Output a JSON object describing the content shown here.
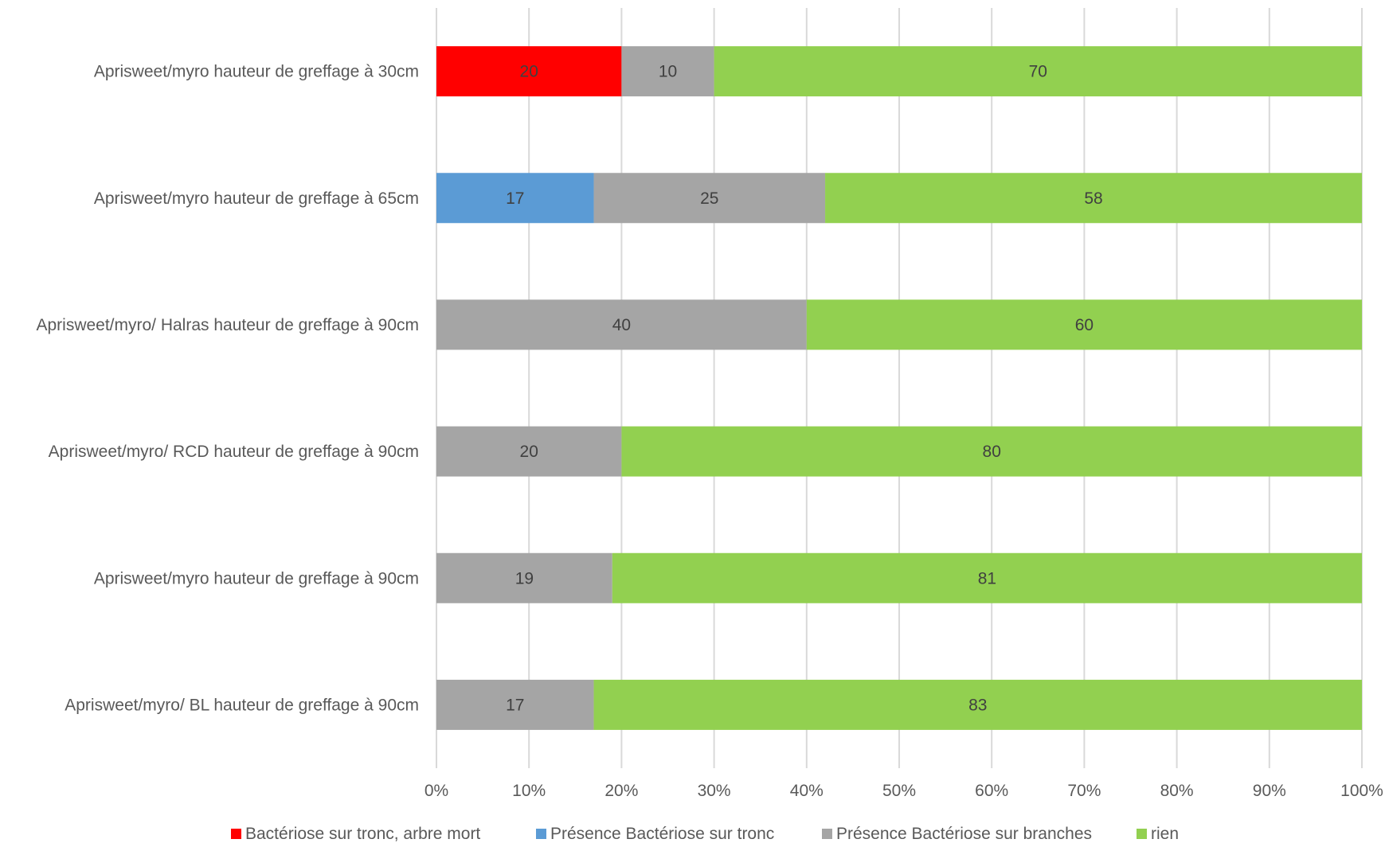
{
  "chart_data": {
    "type": "bar",
    "orientation": "horizontal",
    "stacked": "percent",
    "title": "",
    "xlabel": "",
    "ylabel": "",
    "xlim": [
      0,
      100
    ],
    "x_ticks": [
      "0%",
      "10%",
      "20%",
      "30%",
      "40%",
      "50%",
      "60%",
      "70%",
      "80%",
      "90%",
      "100%"
    ],
    "grid": "vertical",
    "legend_position": "bottom",
    "categories": [
      "Aprisweet/myro hauteur de greffage à 30cm",
      "Aprisweet/myro hauteur de greffage à 65cm",
      "Aprisweet/myro/ Halras hauteur de greffage à 90cm",
      "Aprisweet/myro/ RCD hauteur de greffage à 90cm",
      "Aprisweet/myro hauteur de greffage à 90cm",
      "Aprisweet/myro/ BL hauteur de greffage à 90cm"
    ],
    "series": [
      {
        "name": "Bactériose sur tronc, arbre mort",
        "color": "#ff0000",
        "values": [
          20,
          0,
          0,
          0,
          0,
          0
        ]
      },
      {
        "name": "Présence Bactériose sur tronc",
        "color": "#5b9bd5",
        "values": [
          0,
          17,
          0,
          0,
          0,
          0
        ]
      },
      {
        "name": "Présence Bactériose sur branches",
        "color": "#a5a5a5",
        "values": [
          10,
          25,
          40,
          20,
          19,
          17
        ]
      },
      {
        "name": "rien",
        "color": "#92d050",
        "values": [
          70,
          58,
          60,
          80,
          81,
          83
        ]
      }
    ]
  }
}
